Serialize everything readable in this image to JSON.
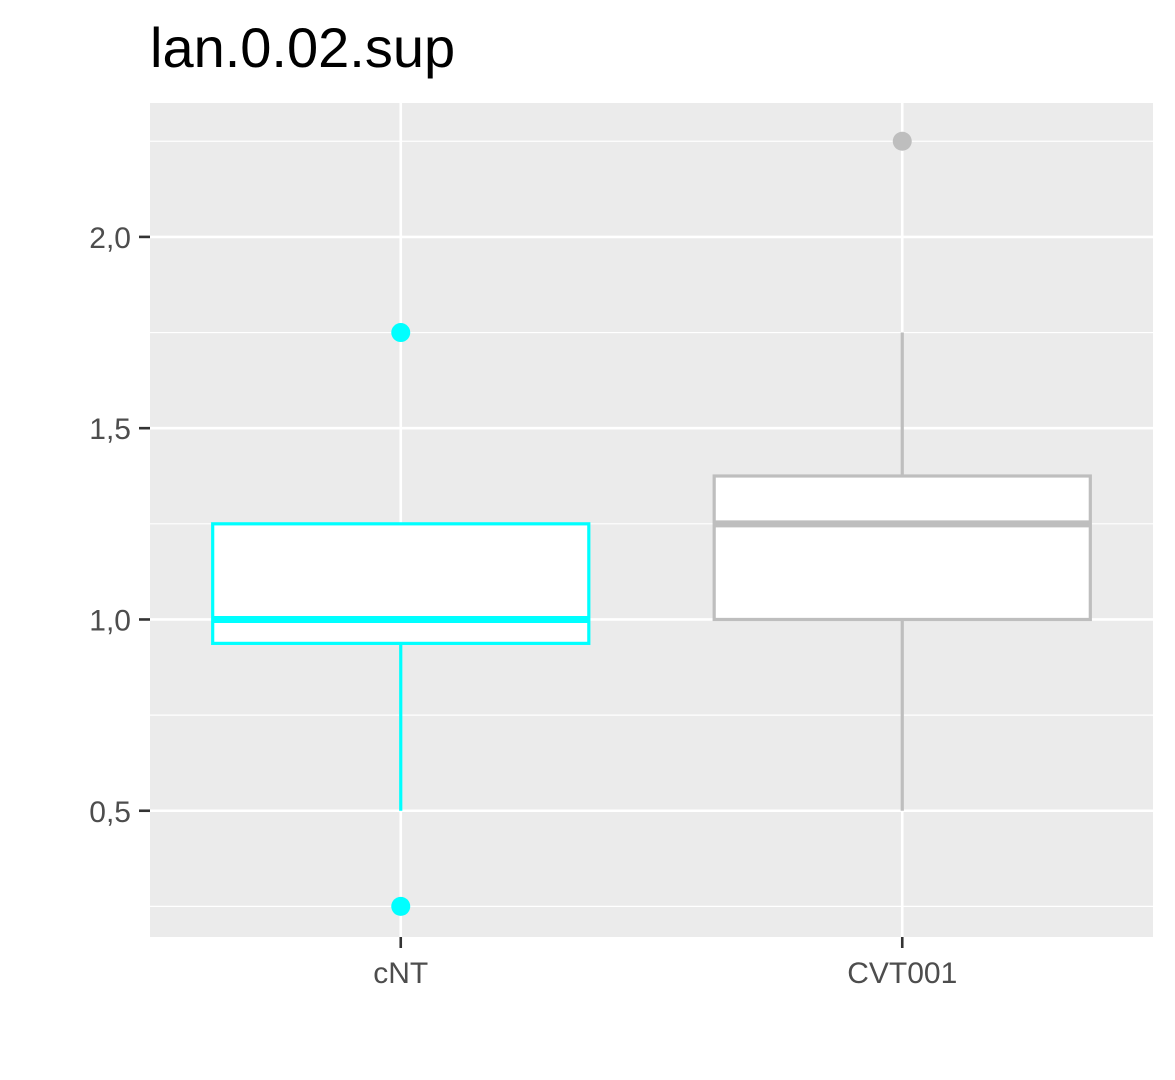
{
  "chart_data": {
    "type": "boxplot",
    "title": "lan.0.02.sup",
    "xlabel": "",
    "ylabel": "",
    "categories": [
      "cNT",
      "CVT001"
    ],
    "ylim": [
      0.17,
      2.35
    ],
    "y_ticks": [
      {
        "value": 0.5,
        "label": "0,5"
      },
      {
        "value": 1.0,
        "label": "1,0"
      },
      {
        "value": 1.5,
        "label": "1,5"
      },
      {
        "value": 2.0,
        "label": "2,0"
      }
    ],
    "y_minor_ticks": [
      0.25,
      0.75,
      1.25,
      1.75,
      2.25
    ],
    "grid": true,
    "legend": "none",
    "panel_background": "#EBEBEB",
    "grid_color": "#FFFFFF",
    "boxes": [
      {
        "category": "cNT",
        "color": "#00FFFF",
        "fill": "#FFFFFF",
        "whisker_low": 0.5,
        "q1": 0.9375,
        "median": 1.0,
        "q3": 1.25,
        "whisker_high": 1.25,
        "outliers": [
          1.75,
          0.25
        ]
      },
      {
        "category": "CVT001",
        "color": "#BEBEBE",
        "fill": "#FFFFFF",
        "whisker_low": 0.5,
        "q1": 1.0,
        "median": 1.25,
        "q3": 1.375,
        "whisker_high": 1.75,
        "outliers": [
          2.25
        ]
      }
    ]
  }
}
